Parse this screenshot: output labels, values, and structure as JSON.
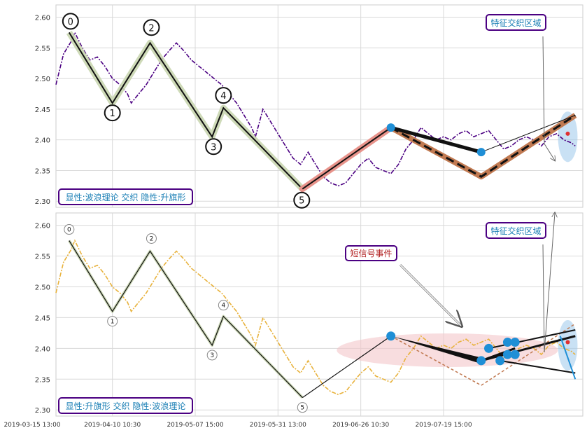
{
  "colors": {
    "panel_border": "#cccccc",
    "grid": "#d9d9d9",
    "price_top": "#4b0082",
    "price_bottom": "#e8b23c",
    "wave_line": "#111111",
    "wave_band": "#c9d6b0",
    "rise_band": "#e8938b",
    "flag_band": "#c17a52",
    "marker": "#1f8fd6",
    "box_border": "#4b0082",
    "box_text": "#1a7fb5",
    "event_text": "#b22222",
    "ellipse_pink": "#f4c7c9",
    "ellipse_blue": "#9cc9eb",
    "dot_red": "#e03030"
  },
  "chart_data": [
    {
      "type": "line",
      "panel": "top",
      "title": "",
      "ylim": [
        2.29,
        2.62
      ],
      "yticks": [
        "2.60",
        "2.55",
        "2.50",
        "2.45",
        "2.40",
        "2.35",
        "2.30"
      ],
      "ytick_values": [
        2.6,
        2.55,
        2.5,
        2.45,
        2.4,
        2.35,
        2.3
      ],
      "grid": true,
      "series": [
        {
          "style": "dashdot",
          "points": [
            [
              0,
              2.49
            ],
            [
              2,
              2.54
            ],
            [
              4,
              2.56
            ],
            [
              5,
              2.575
            ],
            [
              7,
              2.55
            ],
            [
              9,
              2.53
            ],
            [
              11,
              2.535
            ],
            [
              13,
              2.52
            ],
            [
              15,
              2.5
            ],
            [
              17,
              2.49
            ],
            [
              19,
              2.475
            ],
            [
              20,
              2.46
            ],
            [
              22,
              2.475
            ],
            [
              24,
              2.49
            ],
            [
              26,
              2.51
            ],
            [
              28,
              2.53
            ],
            [
              30,
              2.545
            ],
            [
              32,
              2.558
            ],
            [
              34,
              2.545
            ],
            [
              36,
              2.53
            ],
            [
              38,
              2.52
            ],
            [
              40,
              2.51
            ],
            [
              42,
              2.5
            ],
            [
              44,
              2.49
            ],
            [
              46,
              2.475
            ],
            [
              48,
              2.46
            ],
            [
              50,
              2.44
            ],
            [
              52,
              2.42
            ],
            [
              53,
              2.405
            ],
            [
              55,
              2.45
            ],
            [
              57,
              2.43
            ],
            [
              59,
              2.41
            ],
            [
              61,
              2.39
            ],
            [
              63,
              2.37
            ],
            [
              65,
              2.36
            ],
            [
              67,
              2.38
            ],
            [
              69,
              2.36
            ],
            [
              71,
              2.34
            ],
            [
              73,
              2.33
            ],
            [
              75,
              2.325
            ],
            [
              77,
              2.33
            ],
            [
              79,
              2.345
            ],
            [
              81,
              2.36
            ],
            [
              83,
              2.37
            ],
            [
              85,
              2.355
            ],
            [
              87,
              2.35
            ],
            [
              89,
              2.345
            ],
            [
              91,
              2.36
            ],
            [
              93,
              2.385
            ],
            [
              95,
              2.4
            ],
            [
              97,
              2.42
            ],
            [
              99,
              2.41
            ],
            [
              101,
              2.4
            ],
            [
              103,
              2.405
            ],
            [
              105,
              2.4
            ],
            [
              107,
              2.41
            ],
            [
              109,
              2.415
            ],
            [
              111,
              2.405
            ],
            [
              113,
              2.41
            ],
            [
              115,
              2.415
            ],
            [
              117,
              2.4
            ],
            [
              119,
              2.385
            ],
            [
              121,
              2.39
            ],
            [
              123,
              2.4
            ],
            [
              125,
              2.405
            ],
            [
              127,
              2.4
            ],
            [
              129,
              2.39
            ],
            [
              131,
              2.405
            ],
            [
              133,
              2.41
            ],
            [
              135,
              2.4
            ],
            [
              137,
              2.395
            ],
            [
              138,
              2.39
            ]
          ]
        }
      ],
      "wave_points": [
        {
          "label": "0",
          "x": 3.5,
          "y": 2.575
        },
        {
          "label": "1",
          "x": 15,
          "y": 2.46
        },
        {
          "label": "2",
          "x": 25,
          "y": 2.558
        },
        {
          "label": "3",
          "x": 41.5,
          "y": 2.405
        },
        {
          "label": "4",
          "x": 44.5,
          "y": 2.452
        },
        {
          "label": "5",
          "x": 65.5,
          "y": 2.32
        }
      ],
      "flag_points": [
        {
          "x": 65.5,
          "y": 2.32
        },
        {
          "x": 89,
          "y": 2.42
        },
        {
          "x": 113,
          "y": 2.34
        },
        {
          "x": 138,
          "y": 2.44
        }
      ],
      "flag_upper": [
        {
          "x": 89,
          "y": 2.42
        },
        {
          "x": 113,
          "y": 2.38
        }
      ],
      "markers": [
        {
          "x": 89,
          "y": 2.42
        },
        {
          "x": 113,
          "y": 2.38
        }
      ],
      "annotation": "特征交织区域",
      "caption": "显性:波浪理论 交织 隐性:升旗形"
    },
    {
      "type": "line",
      "panel": "bottom",
      "title": "",
      "ylim": [
        2.29,
        2.62
      ],
      "yticks": [
        "2.60",
        "2.55",
        "2.50",
        "2.45",
        "2.40",
        "2.35",
        "2.30"
      ],
      "ytick_values": [
        2.6,
        2.55,
        2.5,
        2.45,
        2.4,
        2.35,
        2.3
      ],
      "xticks": [
        "2019-03-15 13:00",
        "2019-04-10 10:30",
        "2019-05-07 15:00",
        "2019-05-31 13:00",
        "2019-06-26 10:30",
        "2019-07-19 15:00"
      ],
      "xtick_positions": [
        -7,
        15,
        37,
        59,
        81,
        103
      ],
      "grid": true,
      "series": [
        {
          "style": "dashdot",
          "points": [
            [
              0,
              2.49
            ],
            [
              2,
              2.54
            ],
            [
              4,
              2.56
            ],
            [
              5,
              2.575
            ],
            [
              7,
              2.55
            ],
            [
              9,
              2.53
            ],
            [
              11,
              2.535
            ],
            [
              13,
              2.52
            ],
            [
              15,
              2.5
            ],
            [
              17,
              2.49
            ],
            [
              19,
              2.475
            ],
            [
              20,
              2.46
            ],
            [
              22,
              2.475
            ],
            [
              24,
              2.49
            ],
            [
              26,
              2.51
            ],
            [
              28,
              2.53
            ],
            [
              30,
              2.545
            ],
            [
              32,
              2.558
            ],
            [
              34,
              2.545
            ],
            [
              36,
              2.53
            ],
            [
              38,
              2.52
            ],
            [
              40,
              2.51
            ],
            [
              42,
              2.5
            ],
            [
              44,
              2.49
            ],
            [
              46,
              2.475
            ],
            [
              48,
              2.46
            ],
            [
              50,
              2.44
            ],
            [
              52,
              2.42
            ],
            [
              53,
              2.405
            ],
            [
              55,
              2.45
            ],
            [
              57,
              2.43
            ],
            [
              59,
              2.41
            ],
            [
              61,
              2.39
            ],
            [
              63,
              2.37
            ],
            [
              65,
              2.36
            ],
            [
              67,
              2.38
            ],
            [
              69,
              2.36
            ],
            [
              71,
              2.34
            ],
            [
              73,
              2.33
            ],
            [
              75,
              2.325
            ],
            [
              77,
              2.33
            ],
            [
              79,
              2.345
            ],
            [
              81,
              2.36
            ],
            [
              83,
              2.37
            ],
            [
              85,
              2.355
            ],
            [
              87,
              2.35
            ],
            [
              89,
              2.345
            ],
            [
              91,
              2.36
            ],
            [
              93,
              2.385
            ],
            [
              95,
              2.4
            ],
            [
              97,
              2.42
            ],
            [
              99,
              2.41
            ],
            [
              101,
              2.4
            ],
            [
              103,
              2.405
            ],
            [
              105,
              2.4
            ],
            [
              107,
              2.41
            ],
            [
              109,
              2.415
            ],
            [
              111,
              2.405
            ],
            [
              113,
              2.41
            ],
            [
              115,
              2.415
            ],
            [
              117,
              2.4
            ],
            [
              119,
              2.385
            ],
            [
              121,
              2.39
            ],
            [
              123,
              2.4
            ],
            [
              125,
              2.405
            ],
            [
              127,
              2.4
            ],
            [
              129,
              2.39
            ],
            [
              131,
              2.405
            ],
            [
              133,
              2.41
            ],
            [
              135,
              2.4
            ],
            [
              137,
              2.395
            ],
            [
              138,
              2.39
            ]
          ]
        }
      ],
      "wave_points": [
        {
          "label": "0",
          "x": 3.5,
          "y": 2.575
        },
        {
          "label": "1",
          "x": 15,
          "y": 2.46
        },
        {
          "label": "2",
          "x": 25,
          "y": 2.558
        },
        {
          "label": "3",
          "x": 41.5,
          "y": 2.405
        },
        {
          "label": "4",
          "x": 44.5,
          "y": 2.452
        },
        {
          "label": "5",
          "x": 65.5,
          "y": 2.32
        }
      ],
      "flag_points": [
        {
          "x": 65.5,
          "y": 2.32
        },
        {
          "x": 89,
          "y": 2.42
        },
        {
          "x": 113,
          "y": 2.34
        },
        {
          "x": 138,
          "y": 2.44
        }
      ],
      "markers": [
        {
          "x": 89,
          "y": 2.42
        },
        {
          "x": 113,
          "y": 2.38
        },
        {
          "x": 115,
          "y": 2.4
        },
        {
          "x": 118,
          "y": 2.38
        },
        {
          "x": 120,
          "y": 2.41
        },
        {
          "x": 120,
          "y": 2.39
        },
        {
          "x": 122,
          "y": 2.41
        },
        {
          "x": 122,
          "y": 2.39
        }
      ],
      "annotation": "特征交织区域",
      "event_label": "短信号事件",
      "caption": "显性:升旗形 交织 隐性:波浪理论"
    }
  ]
}
